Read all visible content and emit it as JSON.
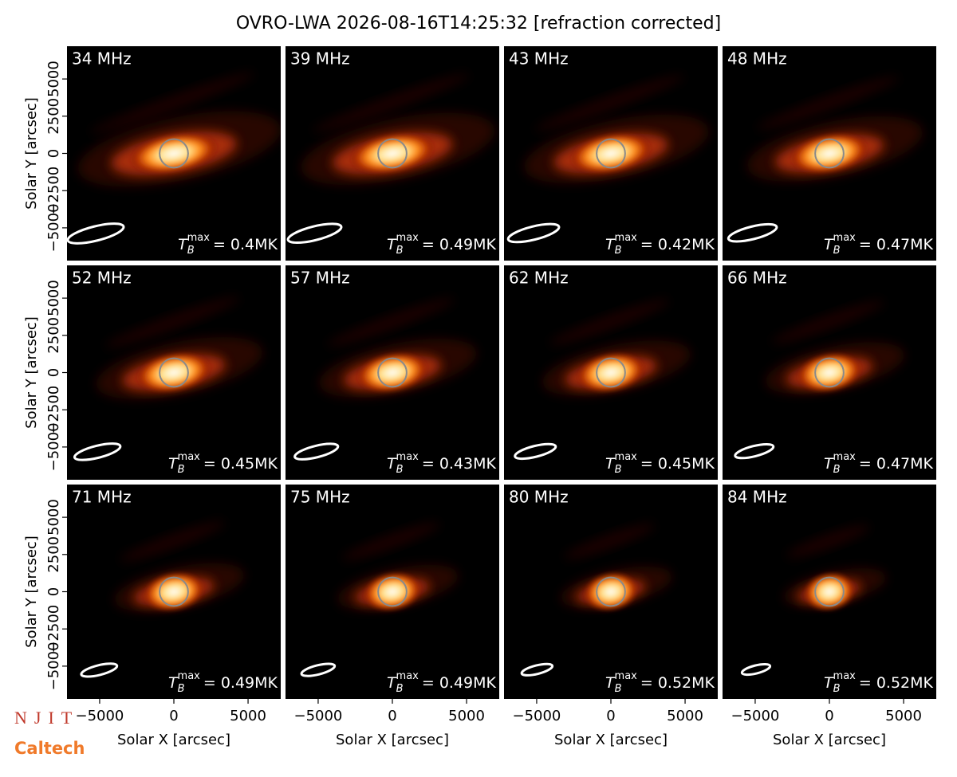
{
  "title": "OVRO-LWA 2026-08-16T14:25:32 [refraction corrected]",
  "xlabel": "Solar X [arcsec]",
  "ylabel": "Solar Y [arcsec]",
  "xlim": [
    -7200,
    7200
  ],
  "ylim": [
    -7200,
    7200
  ],
  "xticks": [
    {
      "value": -5000,
      "label": "−5000"
    },
    0,
    5000
  ],
  "yticks": [
    {
      "value": -5000,
      "label": "−5000"
    },
    {
      "value": -2500,
      "label": "−2500"
    },
    0,
    2500,
    5000
  ],
  "tmax_symbol": "T",
  "tmax_sub": "B",
  "tmax_sup": "max",
  "logos": [
    "NJIT",
    "Caltech"
  ],
  "chart_data": [
    {
      "type": "image",
      "title": "34 MHz",
      "annotation": "= 0.4MK"
    },
    {
      "type": "image",
      "title": "39 MHz",
      "annotation": "= 0.49MK"
    },
    {
      "type": "image",
      "title": "43 MHz",
      "annotation": "= 0.42MK"
    },
    {
      "type": "image",
      "title": "48 MHz",
      "annotation": "= 0.47MK"
    },
    {
      "type": "image",
      "title": "52 MHz",
      "annotation": "= 0.45MK"
    },
    {
      "type": "image",
      "title": "57 MHz",
      "annotation": "= 0.43MK"
    },
    {
      "type": "image",
      "title": "62 MHz",
      "annotation": "= 0.45MK"
    },
    {
      "type": "image",
      "title": "66 MHz",
      "annotation": "= 0.47MK"
    },
    {
      "type": "image",
      "title": "71 MHz",
      "annotation": "= 0.49MK"
    },
    {
      "type": "image",
      "title": "75 MHz",
      "annotation": "= 0.49MK"
    },
    {
      "type": "image",
      "title": "80 MHz",
      "annotation": "= 0.52MK"
    },
    {
      "type": "image",
      "title": "84 MHz",
      "annotation": "= 0.52MK"
    }
  ]
}
